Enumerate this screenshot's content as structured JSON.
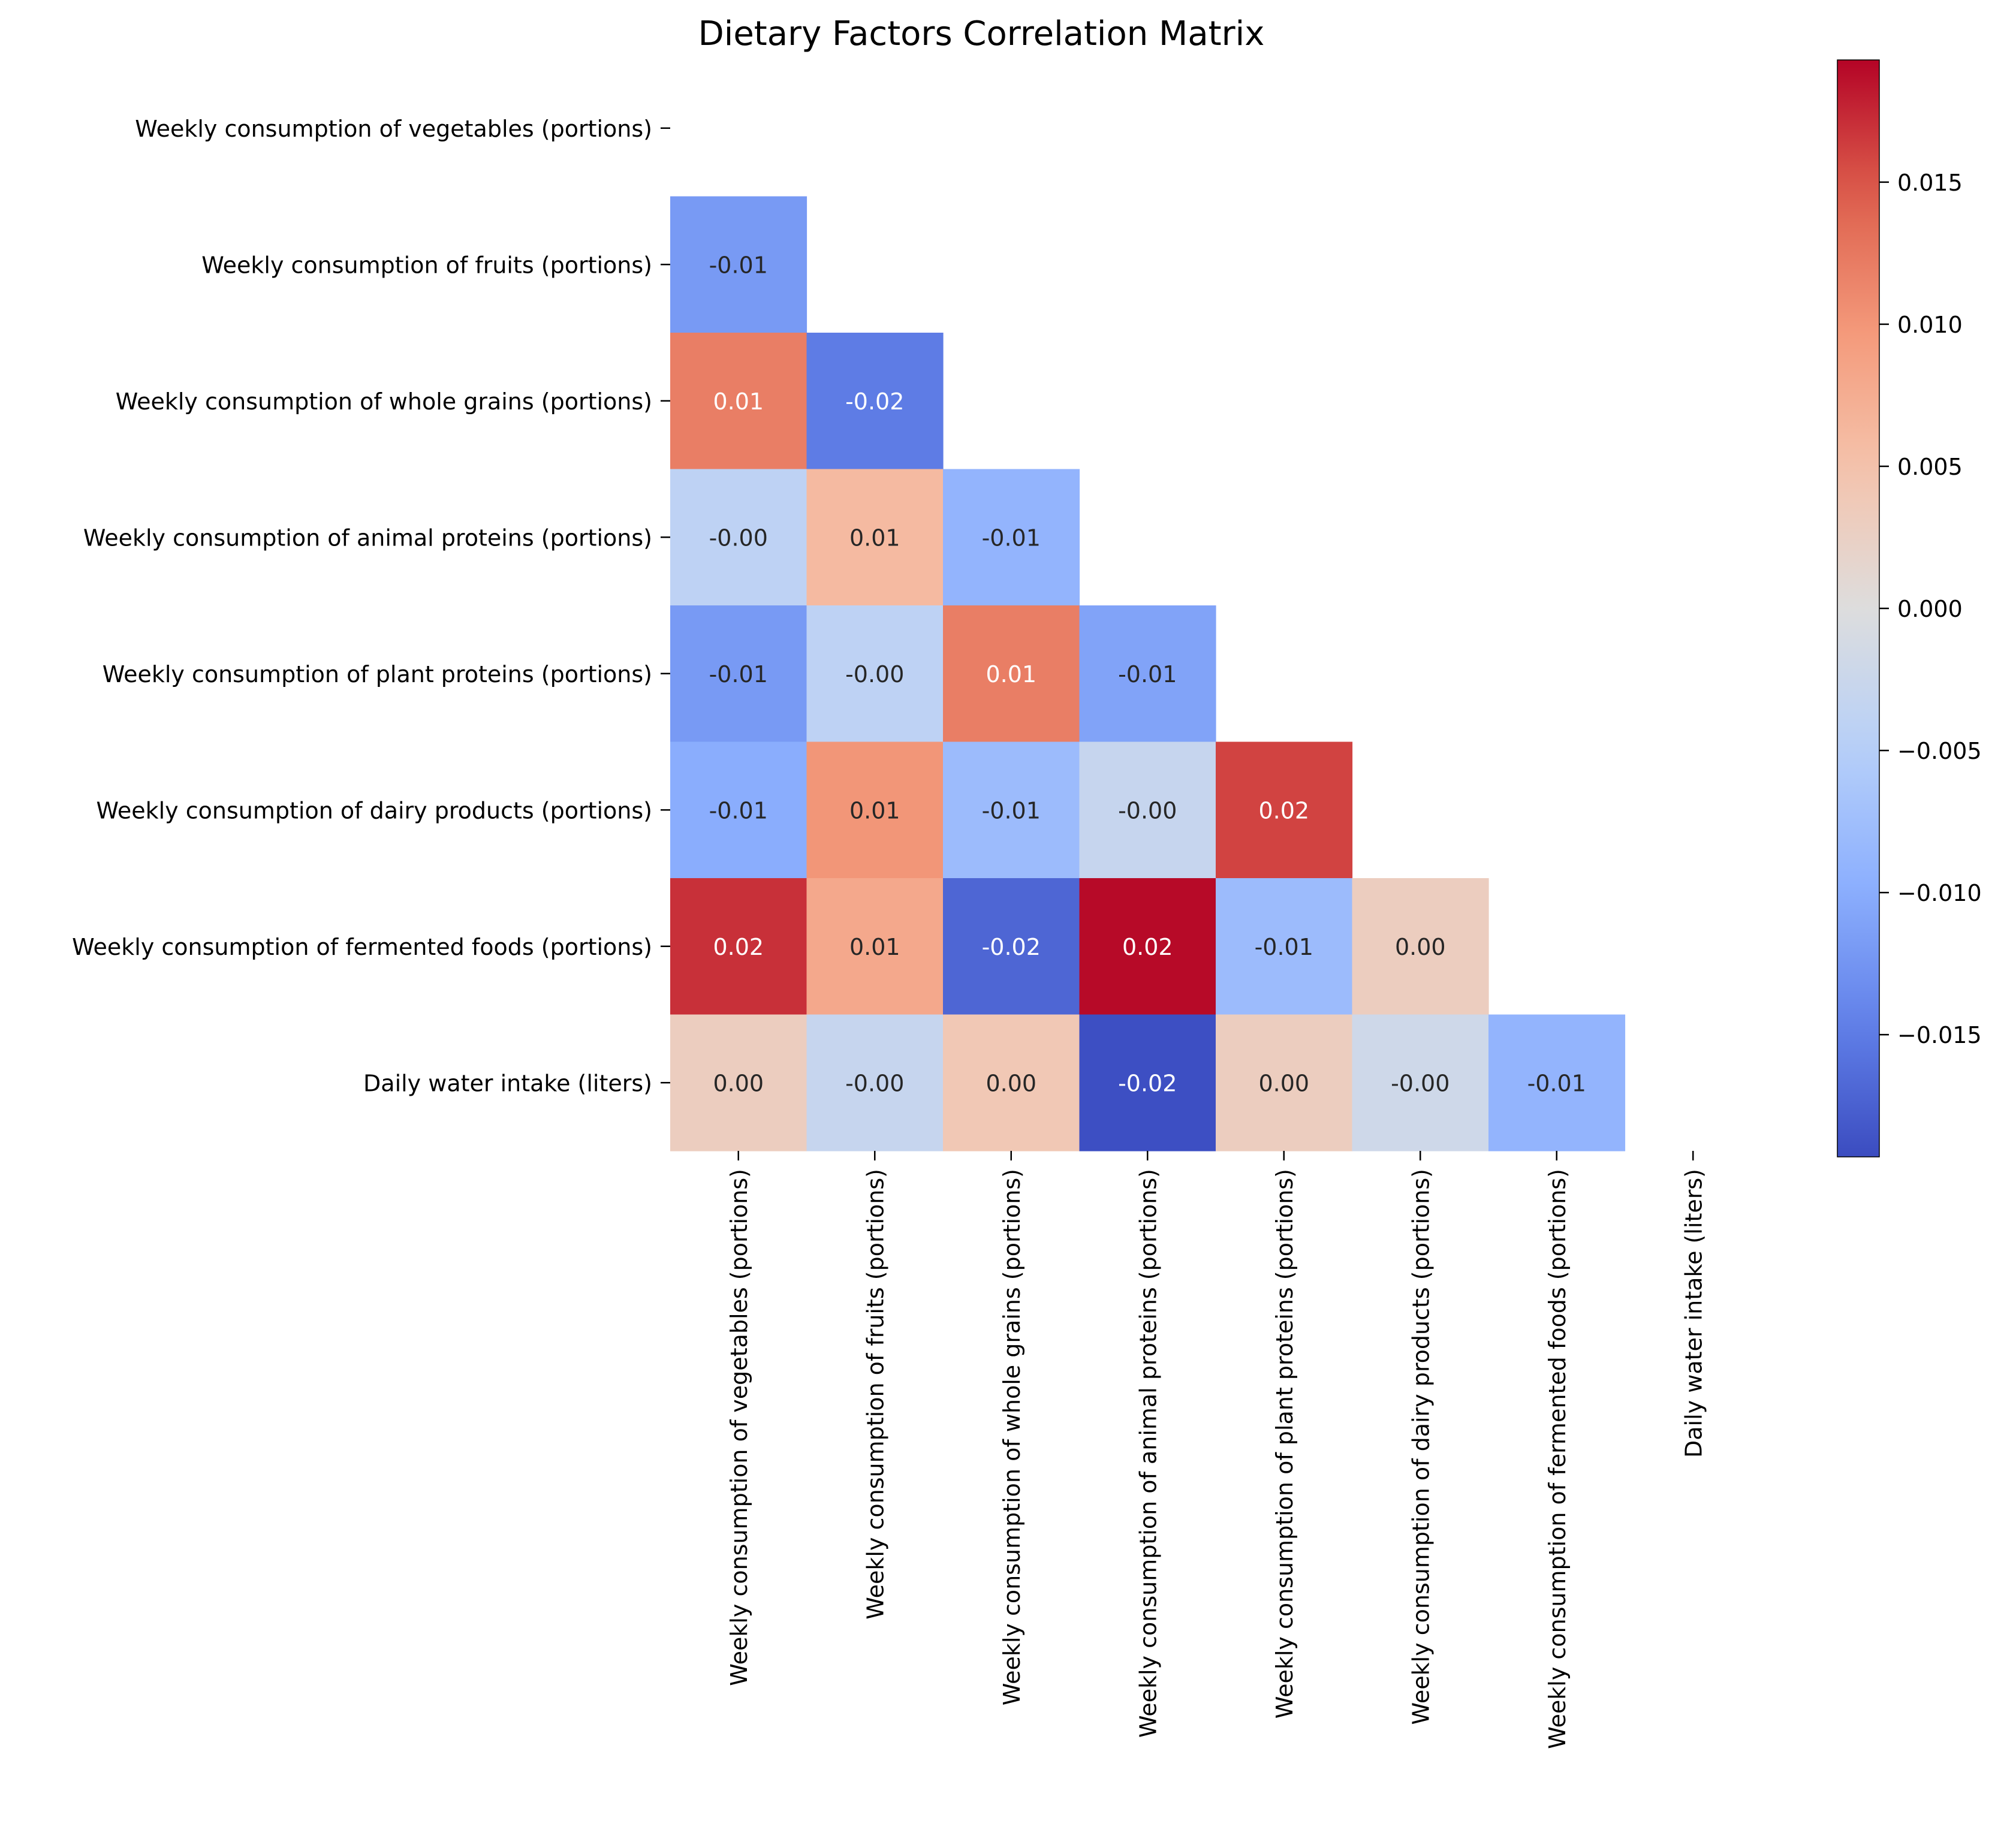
{
  "chart_data": {
    "type": "heatmap",
    "title": "Dietary Factors Correlation Matrix",
    "row_labels": [
      "Weekly consumption of vegetables (portions)",
      "Weekly consumption of fruits (portions)",
      "Weekly consumption of whole grains (portions)",
      "Weekly consumption of animal proteins (portions)",
      "Weekly consumption of plant proteins (portions)",
      "Weekly consumption of dairy products (portions)",
      "Weekly consumption of fermented foods (portions)",
      "Daily water intake (liters)"
    ],
    "col_labels": [
      "Weekly consumption of vegetables (portions)",
      "Weekly consumption of fruits (portions)",
      "Weekly consumption of whole grains (portions)",
      "Weekly consumption of animal proteins (portions)",
      "Weekly consumption of plant proteins (portions)",
      "Weekly consumption of dairy products (portions)",
      "Weekly consumption of fermented foods (portions)",
      "Daily water intake (liters)"
    ],
    "mask": "upper-triangle-including-diagonal",
    "values": [
      [
        null,
        null,
        null,
        null,
        null,
        null,
        null,
        null
      ],
      [
        -0.012,
        null,
        null,
        null,
        null,
        null,
        null,
        null
      ],
      [
        0.012,
        -0.015,
        null,
        null,
        null,
        null,
        null,
        null
      ],
      [
        -0.004,
        0.006,
        -0.009,
        null,
        null,
        null,
        null,
        null
      ],
      [
        -0.012,
        -0.004,
        0.012,
        -0.011,
        null,
        null,
        null,
        null
      ],
      [
        -0.01,
        0.01,
        -0.008,
        -0.003,
        0.016,
        null,
        null,
        null
      ],
      [
        0.017,
        0.008,
        -0.017,
        0.019,
        -0.008,
        0.003,
        null,
        null
      ],
      [
        0.003,
        -0.003,
        0.004,
        -0.019,
        0.003,
        -0.002,
        -0.009,
        null
      ]
    ],
    "cell_labels": [
      [
        "",
        "",
        "",
        "",
        "",
        "",
        "",
        ""
      ],
      [
        "-0.01",
        "",
        "",
        "",
        "",
        "",
        "",
        ""
      ],
      [
        "0.01",
        "-0.02",
        "",
        "",
        "",
        "",
        "",
        ""
      ],
      [
        "-0.00",
        "0.01",
        "-0.01",
        "",
        "",
        "",
        "",
        ""
      ],
      [
        "-0.01",
        "-0.00",
        "0.01",
        "-0.01",
        "",
        "",
        "",
        ""
      ],
      [
        "-0.01",
        "0.01",
        "-0.01",
        "-0.00",
        "0.02",
        "",
        "",
        ""
      ],
      [
        "0.02",
        "0.01",
        "-0.02",
        "0.02",
        "-0.01",
        "0.00",
        "",
        ""
      ],
      [
        "0.00",
        "-0.00",
        "0.00",
        "-0.02",
        "0.00",
        "-0.00",
        "-0.01",
        ""
      ]
    ],
    "colormap": "coolwarm",
    "colorbar": {
      "range": [
        -0.0193,
        0.0193
      ],
      "ticks": [
        0.015,
        0.01,
        0.005,
        0.0,
        -0.005,
        -0.01,
        -0.015
      ],
      "tick_labels": [
        "0.015",
        "0.010",
        "0.005",
        "0.000",
        "−0.005",
        "−0.010",
        "−0.015"
      ]
    }
  }
}
